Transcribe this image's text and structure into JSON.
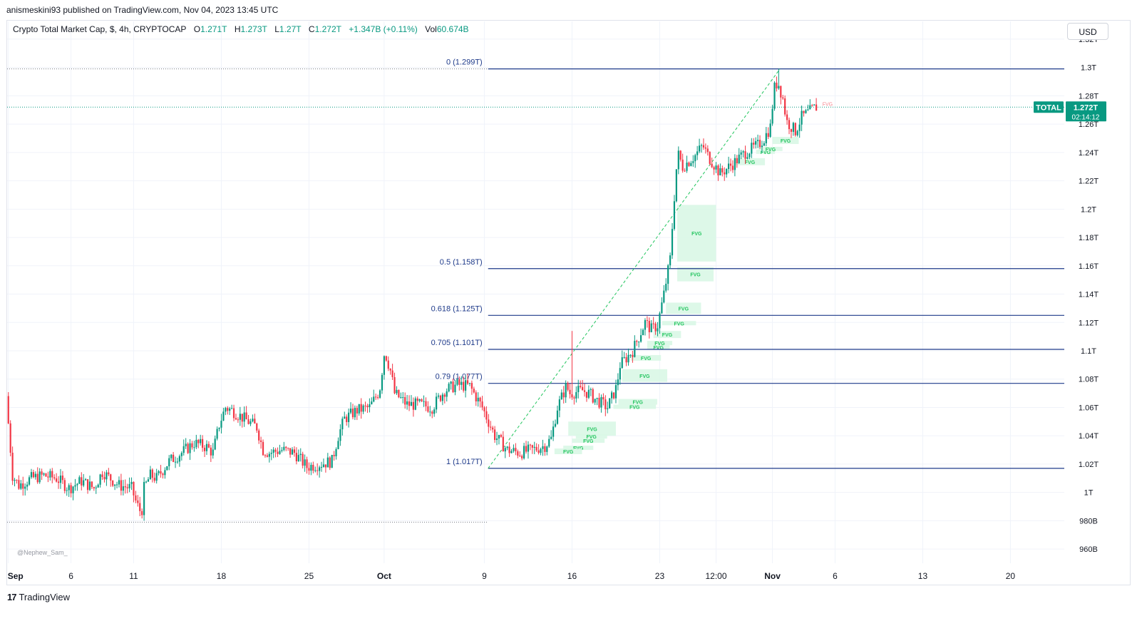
{
  "header": {
    "published": "anismeskini93 published on TradingView.com, Nov 04, 2023 13:45 UTC"
  },
  "legend": {
    "symbol": "Crypto Total Market Cap, $, 4h, CRYPTOCAP",
    "open_label": "O",
    "open": "1.271T",
    "high_label": "H",
    "high": "1.273T",
    "low_label": "L",
    "low": "1.27T",
    "close_label": "C",
    "close": "1.272T",
    "change": "+1.347B (+0.11%)",
    "vol_label": "Vol",
    "vol": "60.674B"
  },
  "currency_button": "USD",
  "watermark": "@Nephew_Sam_",
  "footer": {
    "logo_text": "TradingView"
  },
  "colors": {
    "up": "#089981",
    "down": "#f23645",
    "fib": "#1e3a8a",
    "fvg_fill": "#d9f7e6",
    "fvg_text": "#22c55e",
    "price_tag": "#089981",
    "trend": "#22c55e",
    "grid": "#f0f3fa"
  },
  "chart_data": {
    "type": "candlestick",
    "title": "Crypto Total Market Cap, $, 4h, CRYPTOCAP",
    "y_axis": {
      "ticks": [
        "1.32T",
        "1.3T",
        "1.28T",
        "1.26T",
        "1.24T",
        "1.22T",
        "1.2T",
        "1.18T",
        "1.16T",
        "1.14T",
        "1.12T",
        "1.1T",
        "1.08T",
        "1.06T",
        "1.04T",
        "1.02T",
        "1T",
        "980B",
        "960B"
      ],
      "tick_values": [
        1.32,
        1.3,
        1.28,
        1.26,
        1.24,
        1.22,
        1.2,
        1.18,
        1.16,
        1.14,
        1.12,
        1.1,
        1.08,
        1.06,
        1.04,
        1.02,
        1.0,
        0.98,
        0.96
      ],
      "range": [
        0.95,
        1.325
      ],
      "unit": "T"
    },
    "x_axis": {
      "ticks": [
        {
          "label": "Sep",
          "day": 0,
          "bold": true
        },
        {
          "label": "6",
          "day": 5
        },
        {
          "label": "11",
          "day": 10
        },
        {
          "label": "18",
          "day": 17
        },
        {
          "label": "25",
          "day": 24
        },
        {
          "label": "Oct",
          "day": 30,
          "bold": true
        },
        {
          "label": "9",
          "day": 38
        },
        {
          "label": "16",
          "day": 45
        },
        {
          "label": "23",
          "day": 52
        },
        {
          "label": "12:00",
          "day": 56.5
        },
        {
          "label": "Nov",
          "day": 61,
          "bold": true
        },
        {
          "label": "6",
          "day": 66
        },
        {
          "label": "13",
          "day": 73
        },
        {
          "label": "20",
          "day": 80
        }
      ],
      "range_days": [
        -0.1,
        84.3
      ]
    },
    "price_path": [
      [
        0,
        1.068
      ],
      [
        0.2,
        1.045
      ],
      [
        0.5,
        1.012
      ],
      [
        1,
        1.005
      ],
      [
        2,
        1.01
      ],
      [
        3,
        1.012
      ],
      [
        4,
        1.01
      ],
      [
        5,
        1.003
      ],
      [
        6,
        1.008
      ],
      [
        7,
        1.003
      ],
      [
        7.7,
        1.015
      ],
      [
        8,
        1.012
      ],
      [
        9,
        1.005
      ],
      [
        10,
        1.003
      ],
      [
        10.4,
        0.992
      ],
      [
        10.8,
        0.985
      ],
      [
        11,
        1.003
      ],
      [
        11.5,
        1.012
      ],
      [
        12,
        1.01
      ],
      [
        13,
        1.022
      ],
      [
        14,
        1.028
      ],
      [
        15,
        1.035
      ],
      [
        16,
        1.032
      ],
      [
        16.5,
        1.028
      ],
      [
        17,
        1.048
      ],
      [
        17.5,
        1.06
      ],
      [
        18,
        1.058
      ],
      [
        19,
        1.052
      ],
      [
        20,
        1.046
      ],
      [
        20.5,
        1.03
      ],
      [
        21,
        1.028
      ],
      [
        22,
        1.03
      ],
      [
        23,
        1.028
      ],
      [
        24,
        1.018
      ],
      [
        25,
        1.02
      ],
      [
        26,
        1.022
      ],
      [
        26.5,
        1.04
      ],
      [
        27,
        1.052
      ],
      [
        28,
        1.058
      ],
      [
        29,
        1.06
      ],
      [
        29.8,
        1.072
      ],
      [
        30.2,
        1.1
      ],
      [
        30.7,
        1.085
      ],
      [
        31,
        1.07
      ],
      [
        32,
        1.062
      ],
      [
        33,
        1.062
      ],
      [
        34,
        1.06
      ],
      [
        35,
        1.072
      ],
      [
        36,
        1.076
      ],
      [
        37,
        1.075
      ],
      [
        38,
        1.06
      ],
      [
        38.5,
        1.05
      ],
      [
        39,
        1.04
      ],
      [
        40,
        1.03
      ],
      [
        41,
        1.028
      ],
      [
        42,
        1.03
      ],
      [
        43,
        1.033
      ],
      [
        43.5,
        1.038
      ],
      [
        44,
        1.06
      ],
      [
        44.7,
        1.075
      ],
      [
        45,
        1.07
      ],
      [
        46,
        1.072
      ],
      [
        46.5,
        1.07
      ],
      [
        47,
        1.066
      ],
      [
        48,
        1.06
      ],
      [
        48.7,
        1.074
      ],
      [
        49,
        1.09
      ],
      [
        50,
        1.1
      ],
      [
        51,
        1.12
      ],
      [
        51.5,
        1.115
      ],
      [
        52,
        1.118
      ],
      [
        52.5,
        1.14
      ],
      [
        53,
        1.165
      ],
      [
        53.3,
        1.205
      ],
      [
        53.6,
        1.24
      ],
      [
        54,
        1.23
      ],
      [
        55,
        1.238
      ],
      [
        55.6,
        1.245
      ],
      [
        56,
        1.238
      ],
      [
        57,
        1.225
      ],
      [
        58,
        1.232
      ],
      [
        59,
        1.24
      ],
      [
        60,
        1.245
      ],
      [
        60.5,
        1.25
      ],
      [
        61,
        1.258
      ],
      [
        61.3,
        1.285
      ],
      [
        61.6,
        1.29
      ],
      [
        62,
        1.278
      ],
      [
        62.3,
        1.262
      ],
      [
        63,
        1.255
      ],
      [
        63.5,
        1.265
      ],
      [
        64,
        1.268
      ],
      [
        64.6,
        1.272
      ]
    ],
    "extremes": {
      "low_day": 10.8,
      "low": 0.98,
      "high_day": 61.55,
      "high": 1.299,
      "high_spike_day": 45,
      "high_spike": 1.114
    },
    "current_price": {
      "label": "TOTAL",
      "value": 1.272,
      "value_label": "1.272T",
      "countdown": "02:14:12"
    },
    "fibonacci": [
      {
        "label": "0 (1.299T)",
        "level": 1.299
      },
      {
        "label": "0.5 (1.158T)",
        "level": 1.158
      },
      {
        "label": "0.618 (1.125T)",
        "level": 1.125
      },
      {
        "label": "0.705 (1.101T)",
        "level": 1.101
      },
      {
        "label": "0.79 (1.077T)",
        "level": 1.077
      },
      {
        "label": "1 (1.017T)",
        "level": 1.017
      }
    ],
    "fib_start_day": 38.3,
    "dotted_levels": [
      1.299,
      0.979
    ],
    "trendline": {
      "from": [
        38.3,
        1.017
      ],
      "to": [
        61.6,
        1.299
      ]
    },
    "fvg_label": "FVG",
    "fvg_zones": [
      {
        "d0": 53.4,
        "d1": 56.5,
        "lo": 1.163,
        "hi": 1.203,
        "label": "FVG"
      },
      {
        "d0": 53.4,
        "d1": 56.3,
        "lo": 1.149,
        "hi": 1.159,
        "label": "FVG"
      },
      {
        "d0": 52.5,
        "d1": 55.3,
        "lo": 1.126,
        "hi": 1.134,
        "label": "FVG"
      },
      {
        "d0": 52.2,
        "d1": 54.9,
        "lo": 1.118,
        "hi": 1.121,
        "label": "FVG"
      },
      {
        "d0": 51.5,
        "d1": 53.7,
        "lo": 1.109,
        "hi": 1.114,
        "label": "FVG"
      },
      {
        "d0": 51.0,
        "d1": 53.0,
        "lo": 1.104,
        "hi": 1.107,
        "label": "FVG"
      },
      {
        "d0": 51.0,
        "d1": 52.8,
        "lo": 1.101,
        "hi": 1.104,
        "label": "FVG"
      },
      {
        "d0": 49.7,
        "d1": 52.1,
        "lo": 1.093,
        "hi": 1.097,
        "label": "FVG"
      },
      {
        "d0": 49.0,
        "d1": 52.6,
        "lo": 1.078,
        "hi": 1.087,
        "label": "FVG"
      },
      {
        "d0": 48.7,
        "d1": 51.8,
        "lo": 1.062,
        "hi": 1.066,
        "label": "FVG"
      },
      {
        "d0": 48.3,
        "d1": 51.7,
        "lo": 1.059,
        "hi": 1.062,
        "label": "FVG"
      },
      {
        "d0": 44.7,
        "d1": 48.5,
        "lo": 1.04,
        "hi": 1.05,
        "label": "FVG"
      },
      {
        "d0": 45.3,
        "d1": 47.8,
        "lo": 1.038,
        "hi": 1.041,
        "label": "FVG"
      },
      {
        "d0": 45.0,
        "d1": 47.6,
        "lo": 1.035,
        "hi": 1.038,
        "label": "FVG"
      },
      {
        "d0": 44.3,
        "d1": 46.7,
        "lo": 1.03,
        "hi": 1.033,
        "label": "FVG"
      },
      {
        "d0": 43.6,
        "d1": 45.8,
        "lo": 1.027,
        "hi": 1.031,
        "label": "FVG"
      },
      {
        "d0": 58.0,
        "d1": 60.4,
        "lo": 1.231,
        "hi": 1.236,
        "label": "FVG"
      },
      {
        "d0": 59.7,
        "d1": 61.2,
        "lo": 1.239,
        "hi": 1.242,
        "label": "FVG"
      },
      {
        "d0": 59.9,
        "d1": 61.8,
        "lo": 1.241,
        "hi": 1.244,
        "label": "FVG"
      },
      {
        "d0": 61.0,
        "d1": 63.1,
        "lo": 1.246,
        "hi": 1.251,
        "label": "FVG"
      },
      {
        "d0": 64.5,
        "d1": 66.3,
        "lo": 1.273,
        "hi": 1.276,
        "label": "FVG",
        "faded": true
      }
    ]
  }
}
